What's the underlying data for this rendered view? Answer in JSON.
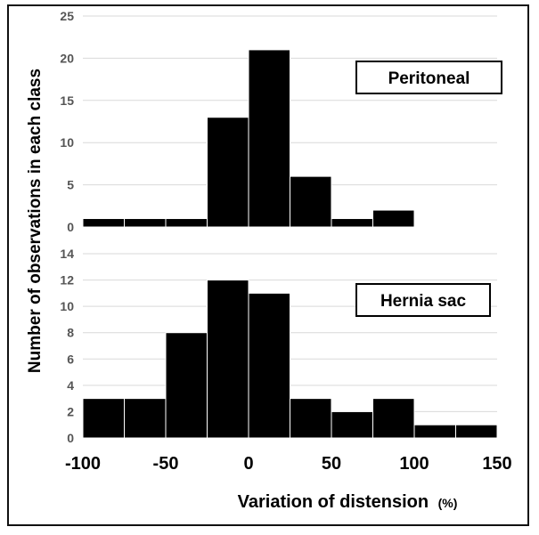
{
  "chart_data": [
    {
      "type": "bar",
      "panel_label": "Peritoneal",
      "bin_edges": [
        -100,
        -75,
        -50,
        -25,
        0,
        25,
        50,
        75,
        100,
        125,
        150
      ],
      "values": [
        1,
        1,
        1,
        13,
        21,
        6,
        1,
        2,
        0,
        0
      ],
      "ylim": [
        0,
        25
      ],
      "yticks": [
        0,
        5,
        10,
        15,
        20,
        25
      ],
      "grid": true
    },
    {
      "type": "bar",
      "panel_label": "Hernia sac",
      "bin_edges": [
        -100,
        -75,
        -50,
        -25,
        0,
        25,
        50,
        75,
        100,
        125,
        150
      ],
      "values": [
        3,
        3,
        8,
        12,
        11,
        3,
        2,
        3,
        1,
        1
      ],
      "ylim": [
        0,
        14
      ],
      "yticks": [
        0,
        2,
        4,
        6,
        8,
        10,
        12,
        14
      ],
      "grid": true
    }
  ],
  "axes": {
    "xticks": [
      -100,
      -50,
      0,
      50,
      100,
      150
    ],
    "ylabel": "Number of observations in each class",
    "xlabel_main": "Variation of distension",
    "xlabel_unit": "(%)"
  },
  "colors": {
    "bar": "#000000",
    "bar_edge": "#ffffff",
    "grid": "#d9d9d9",
    "label_box": "#000000"
  }
}
